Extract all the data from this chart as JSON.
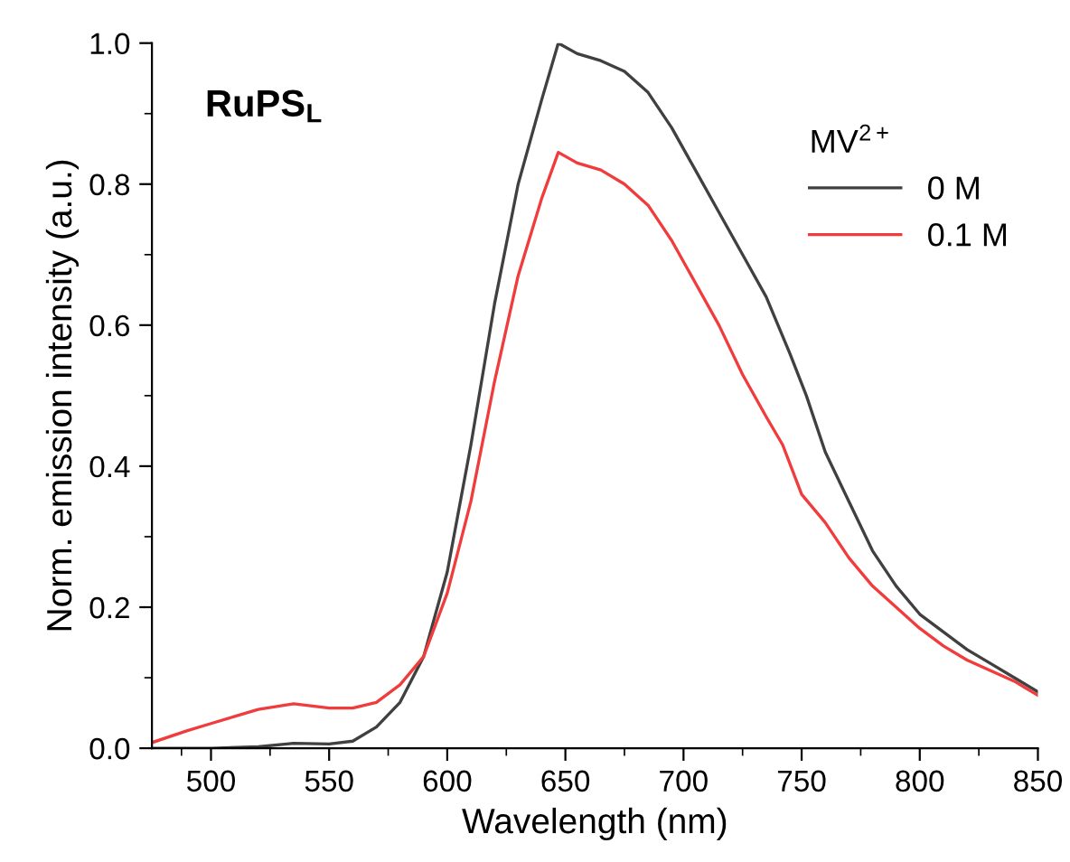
{
  "chart_data": {
    "type": "line",
    "xlabel": "Wavelength (nm)",
    "ylabel": "Norm. emission intensity (a.u.)",
    "legend_title": "MV$^{2+}$",
    "annotations": [
      "RuPS$_{L}$"
    ],
    "xlim": [
      475,
      850
    ],
    "ylim": [
      0,
      1.0
    ],
    "xticks": [
      500,
      550,
      600,
      650,
      700,
      750,
      800,
      850
    ],
    "yticks": [
      {
        "value": 0,
        "label": "0.0"
      },
      0.2,
      0.4,
      0.6,
      0.8,
      {
        "value": 1,
        "label": "1.0"
      }
    ],
    "grid": false,
    "legend": "top right",
    "marker": "none",
    "line_style": "solid",
    "series": [
      {
        "name": "0 M",
        "color": "#404040",
        "x": [
          475,
          500,
          520,
          535,
          550,
          560,
          570,
          580,
          590,
          600,
          610,
          620,
          630,
          640,
          647,
          655,
          665,
          675,
          685,
          695,
          705,
          715,
          725,
          735,
          745,
          752,
          760,
          770,
          780,
          790,
          800,
          810,
          820,
          830,
          840,
          850
        ],
        "values": [
          0.0,
          0.0,
          0.002,
          0.007,
          0.006,
          0.01,
          0.03,
          0.065,
          0.13,
          0.25,
          0.43,
          0.63,
          0.8,
          0.92,
          1.0,
          0.985,
          0.975,
          0.96,
          0.93,
          0.88,
          0.82,
          0.76,
          0.7,
          0.64,
          0.56,
          0.5,
          0.42,
          0.35,
          0.28,
          0.23,
          0.19,
          0.165,
          0.14,
          0.12,
          0.1,
          0.08
        ]
      },
      {
        "name": "0.1 M",
        "color": "#f03c3c",
        "x": [
          475,
          490,
          500,
          510,
          520,
          535,
          550,
          560,
          570,
          580,
          590,
          600,
          610,
          620,
          630,
          640,
          647,
          655,
          665,
          675,
          685,
          695,
          705,
          715,
          725,
          735,
          742,
          750,
          760,
          770,
          780,
          790,
          800,
          810,
          820,
          830,
          840,
          850
        ],
        "values": [
          0.008,
          0.025,
          0.035,
          0.045,
          0.055,
          0.063,
          0.057,
          0.057,
          0.065,
          0.09,
          0.13,
          0.22,
          0.35,
          0.52,
          0.67,
          0.78,
          0.845,
          0.83,
          0.82,
          0.8,
          0.77,
          0.72,
          0.66,
          0.6,
          0.53,
          0.47,
          0.43,
          0.36,
          0.32,
          0.27,
          0.23,
          0.2,
          0.17,
          0.145,
          0.125,
          0.11,
          0.095,
          0.075
        ]
      }
    ]
  }
}
